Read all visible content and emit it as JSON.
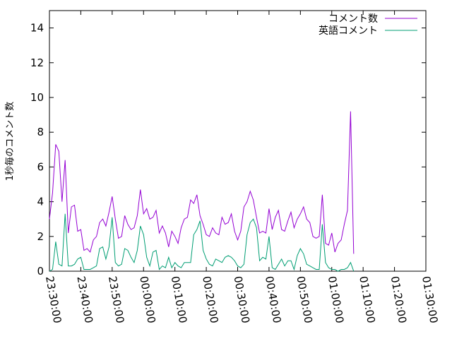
{
  "chart_data": {
    "type": "line",
    "title": "",
    "xlabel": "",
    "ylabel": "1秒毎のコメント数",
    "ylim": [
      0,
      15
    ],
    "xlim_minutes": [
      0,
      120
    ],
    "grid": false,
    "legend_position": "top-right",
    "x_ticks": [
      "23:30:00",
      "23:40:00",
      "23:50:00",
      "00:00:00",
      "00:10:00",
      "00:20:00",
      "00:30:00",
      "00:40:00",
      "00:50:00",
      "01:00:00",
      "01:10:00",
      "01:20:00",
      "01:30:00"
    ],
    "y_ticks": [
      "0",
      "2",
      "4",
      "6",
      "8",
      "10",
      "12",
      "14"
    ],
    "series": [
      {
        "name": "コメント数",
        "color": "#9400d3",
        "points": [
          [
            0,
            3.0
          ],
          [
            1,
            4.5
          ],
          [
            2,
            7.3
          ],
          [
            3,
            6.9
          ],
          [
            4,
            4.0
          ],
          [
            5,
            6.4
          ],
          [
            6,
            2.2
          ],
          [
            7,
            3.7
          ],
          [
            8,
            3.8
          ],
          [
            9,
            2.3
          ],
          [
            10,
            2.4
          ],
          [
            11,
            1.2
          ],
          [
            12,
            1.3
          ],
          [
            13,
            1.1
          ],
          [
            14,
            1.8
          ],
          [
            15,
            2.0
          ],
          [
            16,
            2.8
          ],
          [
            17,
            3.0
          ],
          [
            18,
            2.6
          ],
          [
            19,
            3.4
          ],
          [
            20,
            4.3
          ],
          [
            21,
            3.0
          ],
          [
            22,
            1.9
          ],
          [
            23,
            2.0
          ],
          [
            24,
            3.2
          ],
          [
            25,
            2.7
          ],
          [
            26,
            2.4
          ],
          [
            27,
            2.5
          ],
          [
            28,
            3.2
          ],
          [
            29,
            4.7
          ],
          [
            30,
            3.3
          ],
          [
            31,
            3.6
          ],
          [
            32,
            3.0
          ],
          [
            33,
            3.1
          ],
          [
            34,
            3.5
          ],
          [
            35,
            2.2
          ],
          [
            36,
            2.6
          ],
          [
            37,
            2.2
          ],
          [
            38,
            1.4
          ],
          [
            39,
            2.3
          ],
          [
            40,
            2.0
          ],
          [
            41,
            1.6
          ],
          [
            42,
            2.5
          ],
          [
            43,
            3.0
          ],
          [
            44,
            3.1
          ],
          [
            45,
            4.1
          ],
          [
            46,
            3.9
          ],
          [
            47,
            4.4
          ],
          [
            48,
            3.2
          ],
          [
            49,
            2.7
          ],
          [
            50,
            2.1
          ],
          [
            51,
            2.0
          ],
          [
            52,
            2.5
          ],
          [
            53,
            2.2
          ],
          [
            54,
            2.1
          ],
          [
            55,
            3.1
          ],
          [
            56,
            2.7
          ],
          [
            57,
            2.8
          ],
          [
            58,
            3.3
          ],
          [
            59,
            2.3
          ],
          [
            60,
            1.8
          ],
          [
            61,
            2.3
          ],
          [
            62,
            3.7
          ],
          [
            63,
            4.0
          ],
          [
            64,
            4.6
          ],
          [
            65,
            4.1
          ],
          [
            66,
            3.1
          ],
          [
            67,
            2.2
          ],
          [
            68,
            2.3
          ],
          [
            69,
            2.2
          ],
          [
            70,
            3.6
          ],
          [
            71,
            2.4
          ],
          [
            72,
            3.1
          ],
          [
            73,
            3.5
          ],
          [
            74,
            2.4
          ],
          [
            75,
            2.3
          ],
          [
            76,
            2.9
          ],
          [
            77,
            3.4
          ],
          [
            78,
            2.5
          ],
          [
            79,
            3.0
          ],
          [
            80,
            3.3
          ],
          [
            81,
            3.7
          ],
          [
            82,
            3.0
          ],
          [
            83,
            2.8
          ],
          [
            84,
            2.0
          ],
          [
            85,
            1.9
          ],
          [
            86,
            2.0
          ],
          [
            87,
            4.4
          ],
          [
            88,
            1.6
          ],
          [
            89,
            1.5
          ],
          [
            90,
            2.2
          ],
          [
            91,
            1.1
          ],
          [
            92,
            1.6
          ],
          [
            93,
            1.8
          ],
          [
            94,
            2.7
          ],
          [
            95,
            3.5
          ],
          [
            96,
            9.2
          ],
          [
            97,
            1.0
          ]
        ]
      },
      {
        "name": "英語コメント",
        "color": "#009e73",
        "points": [
          [
            0,
            0.0
          ],
          [
            1,
            0.1
          ],
          [
            2,
            1.7
          ],
          [
            3,
            0.4
          ],
          [
            4,
            0.3
          ],
          [
            5,
            3.3
          ],
          [
            6,
            0.3
          ],
          [
            7,
            0.3
          ],
          [
            8,
            0.4
          ],
          [
            9,
            0.7
          ],
          [
            10,
            0.8
          ],
          [
            11,
            0.1
          ],
          [
            12,
            0.1
          ],
          [
            13,
            0.1
          ],
          [
            14,
            0.2
          ],
          [
            15,
            0.3
          ],
          [
            16,
            1.3
          ],
          [
            17,
            1.4
          ],
          [
            18,
            0.7
          ],
          [
            19,
            1.4
          ],
          [
            20,
            3.1
          ],
          [
            21,
            0.5
          ],
          [
            22,
            0.3
          ],
          [
            23,
            0.4
          ],
          [
            24,
            1.3
          ],
          [
            25,
            1.2
          ],
          [
            26,
            0.8
          ],
          [
            27,
            0.5
          ],
          [
            28,
            1.2
          ],
          [
            29,
            2.6
          ],
          [
            30,
            2.1
          ],
          [
            31,
            0.8
          ],
          [
            32,
            0.3
          ],
          [
            33,
            1.1
          ],
          [
            34,
            1.2
          ],
          [
            35,
            0.1
          ],
          [
            36,
            0.3
          ],
          [
            37,
            0.2
          ],
          [
            38,
            0.8
          ],
          [
            39,
            0.2
          ],
          [
            40,
            0.5
          ],
          [
            41,
            0.3
          ],
          [
            42,
            0.2
          ],
          [
            43,
            0.5
          ],
          [
            44,
            0.5
          ],
          [
            45,
            0.5
          ],
          [
            46,
            2.1
          ],
          [
            47,
            2.4
          ],
          [
            48,
            2.9
          ],
          [
            49,
            1.2
          ],
          [
            50,
            0.7
          ],
          [
            51,
            0.4
          ],
          [
            52,
            0.3
          ],
          [
            53,
            0.7
          ],
          [
            54,
            0.6
          ],
          [
            55,
            0.5
          ],
          [
            56,
            0.8
          ],
          [
            57,
            0.9
          ],
          [
            58,
            0.8
          ],
          [
            59,
            0.6
          ],
          [
            60,
            0.3
          ],
          [
            61,
            0.2
          ],
          [
            62,
            0.4
          ],
          [
            63,
            2.1
          ],
          [
            64,
            2.8
          ],
          [
            65,
            3.0
          ],
          [
            66,
            2.5
          ],
          [
            67,
            0.6
          ],
          [
            68,
            0.8
          ],
          [
            69,
            0.7
          ],
          [
            70,
            2.0
          ],
          [
            71,
            0.2
          ],
          [
            72,
            0.1
          ],
          [
            73,
            0.4
          ],
          [
            74,
            0.7
          ],
          [
            75,
            0.3
          ],
          [
            76,
            0.6
          ],
          [
            77,
            0.6
          ],
          [
            78,
            0.1
          ],
          [
            79,
            0.9
          ],
          [
            80,
            1.3
          ],
          [
            81,
            1.0
          ],
          [
            82,
            0.4
          ],
          [
            83,
            0.3
          ],
          [
            84,
            0.2
          ],
          [
            85,
            0.1
          ],
          [
            86,
            0.1
          ],
          [
            87,
            2.7
          ],
          [
            88,
            0.5
          ],
          [
            89,
            0.2
          ],
          [
            90,
            0.1
          ],
          [
            91,
            0.1
          ],
          [
            92,
            0.0
          ],
          [
            93,
            0.1
          ],
          [
            94,
            0.1
          ],
          [
            95,
            0.2
          ],
          [
            96,
            0.5
          ],
          [
            97,
            0.0
          ]
        ]
      }
    ]
  }
}
